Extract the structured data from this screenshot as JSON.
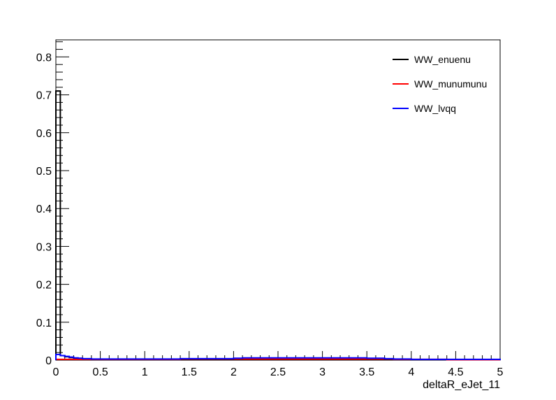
{
  "chart_data": {
    "type": "line",
    "title": "",
    "xlabel": "deltaR_eJet_11",
    "ylabel": "",
    "xlim": [
      0,
      5
    ],
    "ylim": [
      0,
      0.845
    ],
    "x_ticks": [
      0,
      0.5,
      1,
      1.5,
      2,
      2.5,
      3,
      3.5,
      4,
      4.5,
      5
    ],
    "x_tick_labels": [
      "0",
      "0.5",
      "1",
      "1.5",
      "2",
      "2.5",
      "3",
      "3.5",
      "4",
      "4.5",
      "5"
    ],
    "y_ticks": [
      0,
      0.1,
      0.2,
      0.3,
      0.4,
      0.5,
      0.6,
      0.7,
      0.8
    ],
    "y_tick_labels": [
      "0",
      "0.1",
      "0.2",
      "0.3",
      "0.4",
      "0.5",
      "0.6",
      "0.7",
      "0.8"
    ],
    "grid": false,
    "legend_position": "top-right",
    "bin_width": 0.05,
    "series": [
      {
        "name": "WW_enuenu",
        "color": "#000000",
        "values": [
          0.71,
          0.012,
          0.009,
          0.007,
          0.005,
          0.004,
          0.003,
          0.003,
          0.002,
          0.002,
          0.002,
          0.002,
          0.002,
          0.002,
          0.002,
          0.002,
          0.002,
          0.002,
          0.002,
          0.002,
          0.002,
          0.002,
          0.002,
          0.002,
          0.002,
          0.002,
          0.002,
          0.002,
          0.002,
          0.002,
          0.002,
          0.002,
          0.002,
          0.002,
          0.002,
          0.002,
          0.002,
          0.002,
          0.002,
          0.002,
          0.002,
          0.002,
          0.002,
          0.002,
          0.002,
          0.002,
          0.002,
          0.002,
          0.002,
          0.002,
          0.002,
          0.002,
          0.002,
          0.002,
          0.002,
          0.002,
          0.002,
          0.002,
          0.002,
          0.002,
          0.002,
          0.002,
          0.002,
          0.002,
          0.002,
          0.002,
          0.002,
          0.002,
          0.002,
          0.002,
          0.002,
          0.002,
          0.002,
          0.002,
          0.001,
          0.001,
          0.001,
          0.001,
          0.001,
          0.001,
          0.001,
          0.001,
          0.001,
          0.001,
          0.001,
          0.001,
          0.001,
          0.001,
          0.001,
          0.001,
          0.001,
          0.001,
          0.001,
          0.001,
          0.001,
          0.001,
          0.001,
          0.001,
          0.001,
          0.001
        ]
      },
      {
        "name": "WW_munumunu",
        "color": "#ff0000",
        "values": [
          0.002,
          0.002,
          0.002,
          0.002,
          0.002,
          0.002,
          0.002,
          0.002,
          0.002,
          0.002,
          0.002,
          0.002,
          0.002,
          0.002,
          0.002,
          0.002,
          0.002,
          0.002,
          0.002,
          0.002,
          0.002,
          0.002,
          0.002,
          0.002,
          0.002,
          0.002,
          0.002,
          0.002,
          0.003,
          0.003,
          0.003,
          0.003,
          0.003,
          0.003,
          0.003,
          0.003,
          0.003,
          0.003,
          0.003,
          0.003,
          0.003,
          0.003,
          0.003,
          0.003,
          0.003,
          0.003,
          0.003,
          0.003,
          0.003,
          0.003,
          0.003,
          0.003,
          0.003,
          0.003,
          0.003,
          0.003,
          0.003,
          0.003,
          0.003,
          0.003,
          0.003,
          0.003,
          0.003,
          0.003,
          0.003,
          0.003,
          0.003,
          0.003,
          0.003,
          0.003,
          0.003,
          0.003,
          0.003,
          0.003,
          0.003,
          0.003,
          0.002,
          0.002,
          0.002,
          0.002,
          0.002,
          0.002,
          0.002,
          0.002,
          0.002,
          0.002,
          0.002,
          0.002,
          0.001,
          0.001,
          0.001,
          0.001,
          0.001,
          0.001,
          0.001,
          0.001,
          0.001,
          0.001,
          0.001,
          0.001
        ]
      },
      {
        "name": "WW_lvqq",
        "color": "#0000ff",
        "values": [
          0.015,
          0.012,
          0.01,
          0.008,
          0.006,
          0.005,
          0.004,
          0.004,
          0.003,
          0.003,
          0.003,
          0.003,
          0.003,
          0.003,
          0.003,
          0.003,
          0.003,
          0.003,
          0.003,
          0.003,
          0.003,
          0.003,
          0.003,
          0.003,
          0.003,
          0.003,
          0.003,
          0.003,
          0.004,
          0.004,
          0.004,
          0.004,
          0.004,
          0.004,
          0.004,
          0.004,
          0.004,
          0.004,
          0.004,
          0.004,
          0.005,
          0.005,
          0.006,
          0.006,
          0.006,
          0.006,
          0.006,
          0.006,
          0.006,
          0.006,
          0.006,
          0.006,
          0.006,
          0.006,
          0.006,
          0.006,
          0.006,
          0.006,
          0.006,
          0.006,
          0.006,
          0.006,
          0.006,
          0.006,
          0.006,
          0.006,
          0.006,
          0.006,
          0.006,
          0.006,
          0.005,
          0.005,
          0.005,
          0.005,
          0.004,
          0.004,
          0.003,
          0.003,
          0.003,
          0.003,
          0.002,
          0.002,
          0.002,
          0.002,
          0.002,
          0.002,
          0.002,
          0.002,
          0.002,
          0.002,
          0.002,
          0.002,
          0.002,
          0.002,
          0.002,
          0.002,
          0.002,
          0.002,
          0.002,
          0.002
        ]
      }
    ]
  }
}
